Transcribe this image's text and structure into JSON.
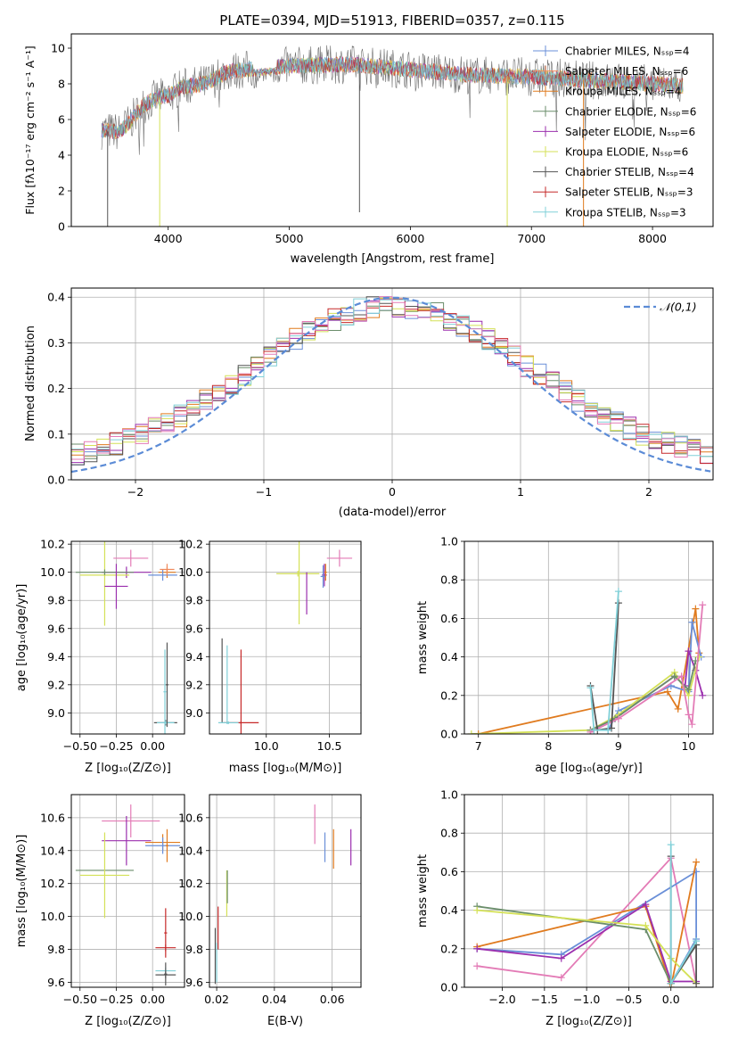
{
  "palette": {
    "Chabrier MILES": "#6a8fd8",
    "Salpeter MILES": "#f08a5d",
    "Kroupa MILES": "#e07b1f",
    "Chabrier ELODIE": "#6b8e6b",
    "Salpeter ELODIE": "#9b2fae",
    "Kroupa ELODIE": "#d4e157",
    "Chabrier STELIB": "#555555",
    "Salpeter STELIB": "#c62828",
    "Kroupa STELIB": "#80d0d8",
    "pink": "#e37bb6",
    "gauss": "#5b8bd6"
  },
  "chart_data": [
    {
      "id": "spectrum",
      "type": "line",
      "title": "PLATE=0394, MJD=51913, FIBERID=0357, z=0.115",
      "xlabel": "wavelength [Angstrom, rest frame]",
      "ylabel": "Flux [fλ10⁻¹⁷ erg cm⁻² s⁻¹ A⁻¹]",
      "xlim": [
        3200,
        8500
      ],
      "ylim": [
        0,
        10.8
      ],
      "xticks": [
        4000,
        5000,
        6000,
        7000,
        8000
      ],
      "yticks": [
        0,
        2,
        4,
        6,
        8,
        10
      ],
      "legend_position": "upper-right",
      "legend": [
        "Chabrier MILES, Nₛₛₚ=4",
        "Salpeter MILES, Nₛₛₚ=6",
        "Kroupa MILES, Nₛₛₚ=4",
        "Chabrier ELODIE, Nₛₛₚ=6",
        "Salpeter ELODIE, Nₛₛₚ=6",
        "Kroupa ELODIE, Nₛₛₚ=6",
        "Chabrier STELIB, Nₛₛₚ=4",
        "Salpeter STELIB, Nₛₛₚ=3",
        "Kroupa STELIB, Nₛₛₚ=3"
      ],
      "continuum": [
        [
          3450,
          5.4
        ],
        [
          3600,
          5.3
        ],
        [
          3700,
          6.0
        ],
        [
          3800,
          6.8
        ],
        [
          3900,
          7.2
        ],
        [
          4000,
          7.3
        ],
        [
          4100,
          7.8
        ],
        [
          4300,
          8.0
        ],
        [
          4500,
          8.7
        ],
        [
          4800,
          8.9
        ],
        [
          5000,
          9.0
        ],
        [
          5500,
          9.1
        ],
        [
          6000,
          8.8
        ],
        [
          6500,
          8.5
        ],
        [
          7000,
          8.4
        ],
        [
          7500,
          8.2
        ],
        [
          8000,
          8.0
        ],
        [
          8250,
          7.9
        ]
      ],
      "deep_lines": [
        [
          3500,
          0.0
        ],
        [
          3930,
          0.0
        ],
        [
          5580,
          0.8
        ],
        [
          6800,
          0.0
        ],
        [
          7430,
          0.0
        ]
      ]
    },
    {
      "id": "residuals",
      "type": "histogram",
      "xlabel": "(data-model)/error",
      "ylabel": "Normed distribution",
      "xlim": [
        -2.5,
        2.5
      ],
      "ylim": [
        0,
        0.42
      ],
      "xticks": [
        -2,
        -1,
        0,
        1,
        2
      ],
      "yticks": [
        0.0,
        0.1,
        0.2,
        0.3,
        0.4
      ],
      "legend": "𝒩(0,1)",
      "legend_position": "upper-right",
      "bin_width": 0.1
    },
    {
      "id": "age-Z",
      "type": "scatter",
      "xlabel": "Z [log₁₀(Z/Z⊙)]",
      "ylabel": "age  [log₁₀(age/yr)]",
      "xlim": [
        -0.56,
        0.22
      ],
      "ylim": [
        8.85,
        10.22
      ],
      "xticks": [
        -0.5,
        -0.25,
        0.0
      ],
      "xticklabels": [
        "−0.50",
        "−0.25",
        "0.00"
      ],
      "yticks": [
        9.0,
        9.2,
        9.4,
        9.6,
        9.8,
        10.0,
        10.2
      ],
      "points": [
        {
          "x": -0.15,
          "xerr": 0.12,
          "y": 10.1,
          "yerr": 0.06,
          "color": "pink"
        },
        {
          "x": -0.18,
          "xerr": 0.17,
          "y": 10.0,
          "yerr": 0.04,
          "color": "Salpeter ELODIE"
        },
        {
          "x": -0.33,
          "xerr": 0.17,
          "y": 9.98,
          "yerr": 0.36,
          "color": "Kroupa ELODIE"
        },
        {
          "x": -0.33,
          "xerr": 0.2,
          "y": 10.0,
          "yerr": 0.02,
          "color": "Chabrier ELODIE"
        },
        {
          "x": -0.25,
          "xerr": 0.08,
          "y": 9.9,
          "yerr": 0.16,
          "color": "Salpeter ELODIE"
        },
        {
          "x": 0.1,
          "xerr": 0.06,
          "y": 10.0,
          "yerr": 0.04,
          "color": "Kroupa MILES"
        },
        {
          "x": 0.07,
          "xerr": 0.1,
          "y": 9.98,
          "yerr": 0.04,
          "color": "Chabrier MILES"
        },
        {
          "x": 0.1,
          "xerr": 0.05,
          "y": 10.02,
          "yerr": 0.04,
          "color": "Salpeter MILES"
        },
        {
          "x": 0.09,
          "xerr": 0.08,
          "y": 8.93,
          "yerr": 0.02,
          "color": "Chabrier STELIB"
        },
        {
          "x": 0.09,
          "xerr": 0.06,
          "y": 8.93,
          "yerr": 0.01,
          "color": "Kroupa STELIB"
        },
        {
          "x": 0.1,
          "xerr": 0.01,
          "y": 9.2,
          "yerr": 0.3,
          "color": "Chabrier STELIB"
        },
        {
          "x": 0.085,
          "xerr": 0.01,
          "y": 9.15,
          "yerr": 0.3,
          "color": "Kroupa STELIB"
        }
      ]
    },
    {
      "id": "age-mass",
      "type": "scatter",
      "xlabel": "mass [log₁₀(M/M⊙)]",
      "xlim": [
        9.55,
        10.75
      ],
      "ylim": [
        8.85,
        10.22
      ],
      "xticks": [
        10.0,
        10.5
      ],
      "xticklabels": [
        "10.0",
        "10.5"
      ],
      "yticks": [
        9.0,
        9.2,
        9.4,
        9.6,
        9.8,
        10.0,
        10.2
      ],
      "points": [
        {
          "x": 10.58,
          "xerr": 0.1,
          "y": 10.1,
          "yerr": 0.06,
          "color": "pink"
        },
        {
          "x": 10.26,
          "xerr": 0.0,
          "y": 10.0,
          "yerr": 0.37,
          "color": "Kroupa ELODIE"
        },
        {
          "x": 10.25,
          "xerr": 0.17,
          "y": 9.99,
          "yerr": 0.02,
          "color": "Kroupa ELODIE"
        },
        {
          "x": 10.32,
          "xerr": 0.0,
          "y": 9.85,
          "yerr": 0.15,
          "color": "Salpeter ELODIE"
        },
        {
          "x": 10.46,
          "xerr": 0.02,
          "y": 9.98,
          "yerr": 0.08,
          "color": "Salpeter ELODIE"
        },
        {
          "x": 10.45,
          "xerr": 0.02,
          "y": 9.97,
          "yerr": 0.08,
          "color": "Chabrier MILES"
        },
        {
          "x": 10.47,
          "xerr": 0.01,
          "y": 10.0,
          "yerr": 0.06,
          "color": "Kroupa MILES"
        },
        {
          "x": 9.65,
          "xerr": 0.0,
          "y": 9.23,
          "yerr": 0.3,
          "color": "Chabrier STELIB"
        },
        {
          "x": 9.69,
          "xerr": 0.0,
          "y": 9.2,
          "yerr": 0.28,
          "color": "Kroupa STELIB"
        },
        {
          "x": 9.8,
          "xerr": 0.0,
          "y": 9.15,
          "yerr": 0.3,
          "color": "Salpeter STELIB"
        },
        {
          "x": 9.8,
          "xerr": 0.14,
          "y": 8.93,
          "yerr": 0.01,
          "color": "Salpeter STELIB"
        },
        {
          "x": 9.7,
          "xerr": 0.08,
          "y": 8.93,
          "yerr": 0.01,
          "color": "Kroupa STELIB"
        }
      ]
    },
    {
      "id": "weight-age",
      "type": "line",
      "xlabel": "age  [log₁₀(age/yr)]",
      "ylabel": "mass weight",
      "xlim": [
        6.8,
        10.35
      ],
      "ylim": [
        0.0,
        1.0
      ],
      "xticks": [
        7,
        8,
        9,
        10
      ],
      "yticks": [
        0.0,
        0.2,
        0.4,
        0.6,
        0.8,
        1.0
      ],
      "series": [
        {
          "color": "Kroupa MILES",
          "points": [
            [
              7.0,
              0.0
            ],
            [
              9.7,
              0.22
            ],
            [
              9.85,
              0.13
            ],
            [
              10.1,
              0.65
            ],
            [
              10.15,
              0.42
            ]
          ]
        },
        {
          "color": "Chabrier MILES",
          "points": [
            [
              8.85,
              0.02
            ],
            [
              9.0,
              0.12
            ],
            [
              9.75,
              0.25
            ],
            [
              10.0,
              0.22
            ],
            [
              10.05,
              0.58
            ],
            [
              10.18,
              0.4
            ]
          ]
        },
        {
          "color": "Salpeter ELODIE",
          "points": [
            [
              8.6,
              0.02
            ],
            [
              8.95,
              0.08
            ],
            [
              9.8,
              0.3
            ],
            [
              9.95,
              0.25
            ],
            [
              10.0,
              0.43
            ],
            [
              10.1,
              0.33
            ],
            [
              10.2,
              0.2
            ]
          ]
        },
        {
          "color": "Kroupa ELODIE",
          "points": [
            [
              6.9,
              0.0
            ],
            [
              8.6,
              0.02
            ],
            [
              9.0,
              0.1
            ],
            [
              9.8,
              0.32
            ],
            [
              10.0,
              0.2
            ],
            [
              10.15,
              0.4
            ]
          ]
        },
        {
          "color": "Chabrier ELODIE",
          "points": [
            [
              8.6,
              0.02
            ],
            [
              8.95,
              0.08
            ],
            [
              9.8,
              0.3
            ],
            [
              10.0,
              0.23
            ],
            [
              10.1,
              0.38
            ]
          ]
        },
        {
          "color": "pink",
          "points": [
            [
              8.6,
              0.01
            ],
            [
              9.0,
              0.08
            ],
            [
              9.9,
              0.3
            ],
            [
              10.0,
              0.1
            ],
            [
              10.05,
              0.05
            ],
            [
              10.2,
              0.67
            ]
          ]
        },
        {
          "color": "Chabrier STELIB",
          "points": [
            [
              8.6,
              0.25
            ],
            [
              8.7,
              0.02
            ],
            [
              8.9,
              0.03
            ],
            [
              9.0,
              0.68
            ]
          ]
        },
        {
          "color": "Kroupa STELIB",
          "points": [
            [
              8.6,
              0.24
            ],
            [
              8.65,
              0.02
            ],
            [
              8.85,
              0.02
            ],
            [
              9.0,
              0.74
            ]
          ]
        }
      ]
    },
    {
      "id": "mass-Z",
      "type": "scatter",
      "xlabel": "Z [log₁₀(Z/Z⊙)]",
      "ylabel": "mass [log₁₀(M/M⊙)]",
      "xlim": [
        -0.56,
        0.22
      ],
      "ylim": [
        9.57,
        10.74
      ],
      "xticks": [
        -0.5,
        -0.25,
        0.0
      ],
      "xticklabels": [
        "−0.50",
        "−0.25",
        "0.00"
      ],
      "yticks": [
        9.6,
        9.8,
        10.0,
        10.2,
        10.4,
        10.6
      ],
      "points": [
        {
          "x": -0.15,
          "xerr": 0.2,
          "y": 10.58,
          "yerr": 0.1,
          "color": "pink"
        },
        {
          "x": -0.18,
          "xerr": 0.17,
          "y": 10.46,
          "yerr": 0.15,
          "color": "Salpeter ELODIE"
        },
        {
          "x": -0.33,
          "xerr": 0.2,
          "y": 10.28,
          "yerr": 0.0,
          "color": "Chabrier ELODIE"
        },
        {
          "x": -0.33,
          "xerr": 0.17,
          "y": 10.25,
          "yerr": 0.26,
          "color": "Kroupa ELODIE"
        },
        {
          "x": 0.07,
          "xerr": 0.12,
          "y": 10.45,
          "yerr": 0.05,
          "color": "Kroupa MILES"
        },
        {
          "x": 0.07,
          "xerr": 0.12,
          "y": 10.43,
          "yerr": 0.05,
          "color": "Chabrier MILES"
        },
        {
          "x": 0.1,
          "xerr": 0.01,
          "y": 10.43,
          "yerr": 0.1,
          "color": "Kroupa MILES"
        },
        {
          "x": 0.09,
          "xerr": 0.07,
          "y": 9.81,
          "yerr": 0.02,
          "color": "Salpeter STELIB"
        },
        {
          "x": 0.09,
          "xerr": 0.01,
          "y": 9.9,
          "yerr": 0.15,
          "color": "Salpeter STELIB"
        },
        {
          "x": 0.09,
          "xerr": 0.07,
          "y": 9.67,
          "yerr": 0.02,
          "color": "Kroupa STELIB"
        },
        {
          "x": 0.09,
          "xerr": 0.07,
          "y": 9.645,
          "yerr": 0.02,
          "color": "Chabrier STELIB"
        },
        {
          "x": 0.09,
          "xerr": 0.01,
          "y": 9.65,
          "yerr": 0.07,
          "color": "Chabrier STELIB"
        }
      ]
    },
    {
      "id": "mass-EBV",
      "type": "scatter",
      "xlabel": "E(B-V)",
      "xlim": [
        0.0175,
        0.07
      ],
      "ylim": [
        9.57,
        10.74
      ],
      "xticks": [
        0.02,
        0.04,
        0.06
      ],
      "xticklabels": [
        "0.02",
        "0.04",
        "0.06"
      ],
      "yticks": [
        9.6,
        9.8,
        10.0,
        10.2,
        10.4,
        10.6
      ],
      "points": [
        {
          "x": 0.054,
          "xerr": 0,
          "y": 10.56,
          "yerr": 0.12,
          "color": "pink"
        },
        {
          "x": 0.0575,
          "xerr": 0,
          "y": 10.42,
          "yerr": 0.09,
          "color": "Chabrier MILES"
        },
        {
          "x": 0.0605,
          "xerr": 0,
          "y": 10.41,
          "yerr": 0.12,
          "color": "Kroupa MILES"
        },
        {
          "x": 0.0665,
          "xerr": 0,
          "y": 10.42,
          "yerr": 0.11,
          "color": "Salpeter ELODIE"
        },
        {
          "x": 0.0235,
          "xerr": 0,
          "y": 10.14,
          "yerr": 0.14,
          "color": "Kroupa ELODIE"
        },
        {
          "x": 0.0237,
          "xerr": 0,
          "y": 10.18,
          "yerr": 0.1,
          "color": "Chabrier ELODIE"
        },
        {
          "x": 0.0205,
          "xerr": 0,
          "y": 9.93,
          "yerr": 0.13,
          "color": "Salpeter STELIB"
        },
        {
          "x": 0.0195,
          "xerr": 0,
          "y": 9.76,
          "yerr": 0.17,
          "color": "Chabrier STELIB"
        },
        {
          "x": 0.02,
          "xerr": 0,
          "y": 9.72,
          "yerr": 0.12,
          "color": "Kroupa STELIB"
        }
      ]
    },
    {
      "id": "weight-Z",
      "type": "line",
      "xlabel": "Z [log₁₀(Z/Z⊙)]",
      "ylabel": "mass weight",
      "xlim": [
        -2.45,
        0.5
      ],
      "ylim": [
        0.0,
        1.0
      ],
      "xticks": [
        -2.0,
        -1.5,
        -1.0,
        -0.5,
        0.0
      ],
      "xticklabels": [
        "−2.0",
        "−1.5",
        "−1.0",
        "−0.5",
        "0.0"
      ],
      "yticks": [
        0.0,
        0.2,
        0.4,
        0.6,
        0.8,
        1.0
      ],
      "series": [
        {
          "color": "pink",
          "points": [
            [
              -2.3,
              0.11
            ],
            [
              -1.3,
              0.05
            ],
            [
              0.0,
              0.67
            ],
            [
              0.3,
              0.02
            ]
          ]
        },
        {
          "color": "Chabrier MILES",
          "points": [
            [
              -2.3,
              0.2
            ],
            [
              -1.3,
              0.17
            ],
            [
              0.3,
              0.6
            ],
            [
              0.3,
              0.25
            ],
            [
              0.0,
              0.02
            ]
          ]
        },
        {
          "color": "Kroupa MILES",
          "points": [
            [
              -2.3,
              0.21
            ],
            [
              -0.3,
              0.42
            ],
            [
              0.0,
              0.0
            ],
            [
              0.3,
              0.65
            ]
          ]
        },
        {
          "color": "Salpeter ELODIE",
          "points": [
            [
              -2.3,
              0.2
            ],
            [
              -1.3,
              0.15
            ],
            [
              -0.3,
              0.43
            ],
            [
              0.0,
              0.03
            ],
            [
              0.3,
              0.03
            ]
          ]
        },
        {
          "color": "Chabrier ELODIE",
          "points": [
            [
              -2.3,
              0.42
            ],
            [
              -0.3,
              0.3
            ],
            [
              0.0,
              0.02
            ],
            [
              0.3,
              0.22
            ]
          ]
        },
        {
          "color": "Kroupa ELODIE",
          "points": [
            [
              -2.3,
              0.4
            ],
            [
              -0.3,
              0.32
            ],
            [
              0.0,
              0.15
            ],
            [
              0.3,
              0.02
            ]
          ]
        },
        {
          "color": "Chabrier STELIB",
          "points": [
            [
              0.0,
              0.68
            ],
            [
              0.0,
              0.02
            ],
            [
              0.3,
              0.22
            ],
            [
              0.3,
              0.02
            ]
          ]
        },
        {
          "color": "Kroupa STELIB",
          "points": [
            [
              0.0,
              0.74
            ],
            [
              0.0,
              0.02
            ],
            [
              0.3,
              0.24
            ]
          ]
        }
      ]
    }
  ]
}
